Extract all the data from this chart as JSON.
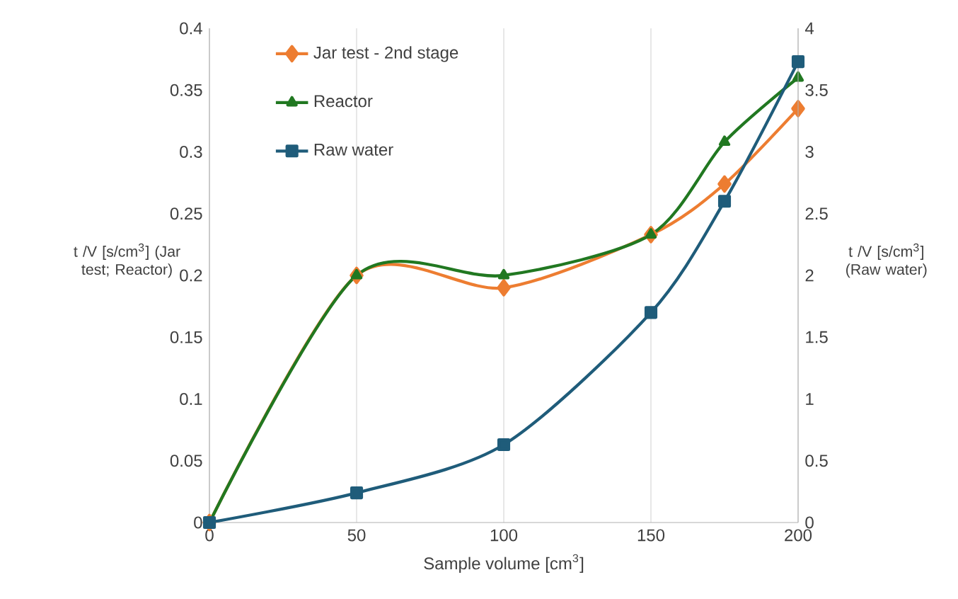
{
  "chart_data": {
    "type": "line",
    "xlabel": "Sample volume [cm$^{3}$]",
    "ylabel": "t /V [s/cm$^{3}$] (Jar test; Reactor)",
    "y2label": "t /V [s/cm$^{3}$] (Raw water)",
    "x": [
      0,
      50,
      100,
      150,
      175,
      200
    ],
    "series": [
      {
        "name": "Jar test - 2nd stage",
        "color": "#ed7d31",
        "marker": "diamond",
        "values": [
          0,
          0.2,
          0.19,
          0.233,
          0.274,
          0.335
        ]
      },
      {
        "name": "Reactor",
        "color": "#217821",
        "marker": "triangle",
        "values": [
          0,
          0.2,
          0.2,
          0.233,
          0.308,
          0.36
        ]
      },
      {
        "name": "Raw water",
        "color": "#1f5c7a",
        "marker": "square",
        "axis": "y2",
        "values": [
          0,
          0.24,
          0.63,
          1.7,
          2.6,
          3.73
        ]
      }
    ],
    "xlim": [
      0,
      200
    ],
    "xticks": [
      0,
      50,
      100,
      150,
      200
    ],
    "ylim": [
      0,
      0.4
    ],
    "yticks": [
      0,
      0.05,
      0.1,
      0.15,
      0.2,
      0.25,
      0.3,
      0.35,
      0.4
    ],
    "y2lim": [
      0,
      4
    ],
    "y2ticks": [
      0,
      0.5,
      1,
      1.5,
      2,
      2.5,
      3,
      3.5,
      4
    ],
    "grid": "x",
    "legend": "top left",
    "line_style": "solid"
  }
}
